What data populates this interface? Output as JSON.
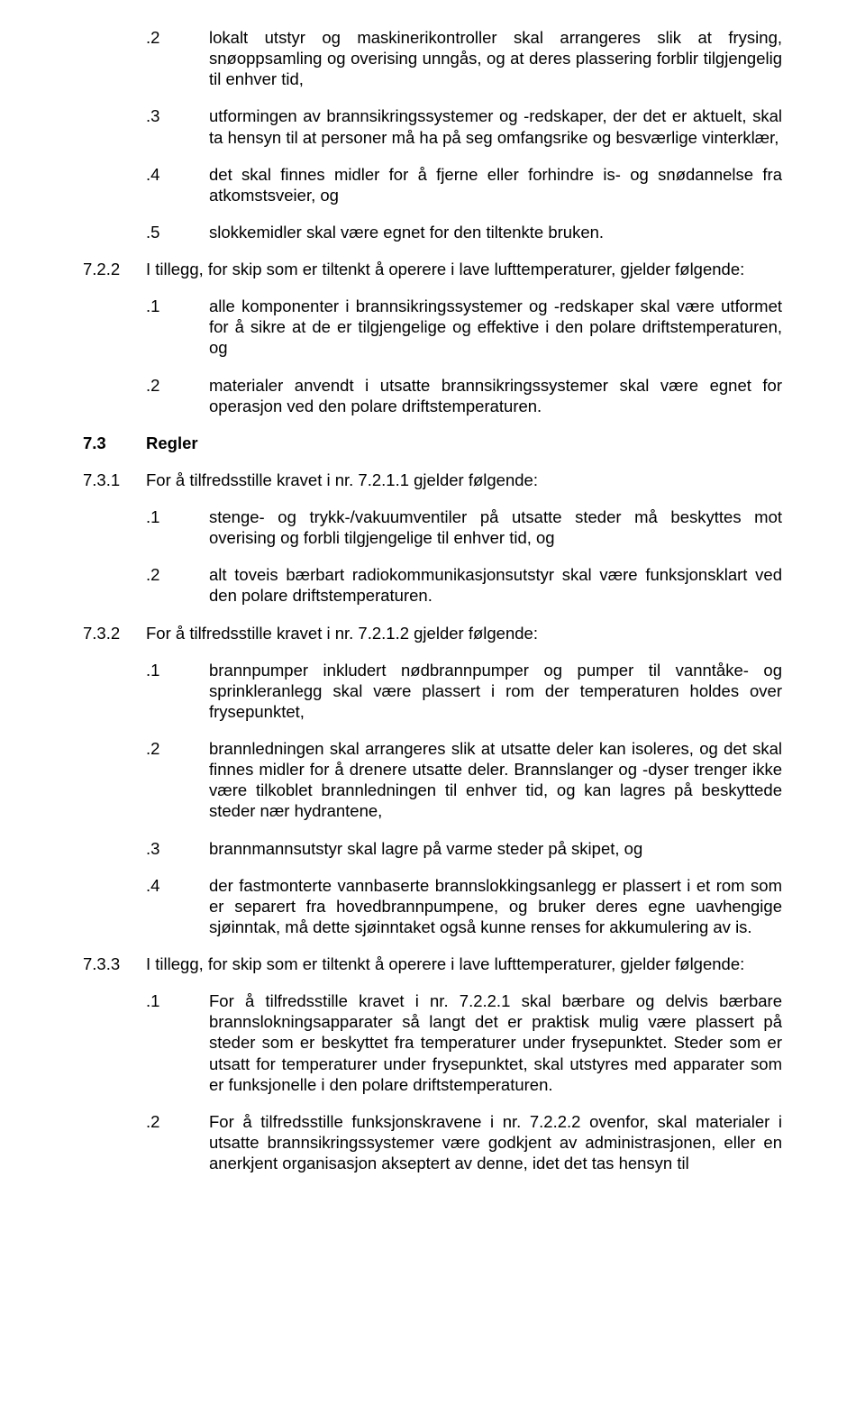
{
  "s1": {
    "items": [
      {
        "n": ".2",
        "t": "lokalt utstyr og maskinerikontroller skal arrangeres slik at frysing, snøoppsamling og overising unngås, og at deres plassering forblir tilgjengelig til enhver tid,"
      },
      {
        "n": ".3",
        "t": "utformingen av brannsikringssystemer og -redskaper, der det er aktuelt, skal ta hensyn til at personer må ha på seg omfangsrike og besværlige vinterklær,"
      },
      {
        "n": ".4",
        "t": "det skal finnes midler for å fjerne eller forhindre is- og snødannelse fra atkomstsveier, og"
      },
      {
        "n": ".5",
        "t": "slokkemidler skal være egnet for den tiltenkte bruken."
      }
    ]
  },
  "s722": {
    "n": "7.2.2",
    "t": "I tillegg, for skip som er tiltenkt å operere i lave lufttemperaturer, gjelder følgende:",
    "items": [
      {
        "n": ".1",
        "t": "alle komponenter i brannsikringssystemer og -redskaper skal være utformet for å sikre at de er tilgjengelige og effektive i den polare driftstemperaturen, og"
      },
      {
        "n": ".2",
        "t": "materialer anvendt i utsatte brannsikringssystemer skal være egnet for operasjon ved den polare driftstemperaturen."
      }
    ]
  },
  "s73": {
    "n": "7.3",
    "t": "Regler"
  },
  "s731": {
    "n": "7.3.1",
    "t": "For å tilfredsstille kravet i nr. 7.2.1.1 gjelder følgende:",
    "items": [
      {
        "n": ".1",
        "t": "stenge- og trykk-/vakuumventiler på utsatte steder må beskyttes mot overising og forbli tilgjengelige til enhver tid, og"
      },
      {
        "n": ".2",
        "t": "alt toveis bærbart radiokommunikasjonsutstyr skal være funksjonsklart ved den polare driftstemperaturen."
      }
    ]
  },
  "s732": {
    "n": "7.3.2",
    "t": "For å tilfredsstille kravet i nr. 7.2.1.2 gjelder følgende:",
    "items": [
      {
        "n": ".1",
        "t": "brannpumper inkludert nødbrannpumper og pumper til vanntåke- og sprinkleranlegg skal være plassert i rom der temperaturen holdes over frysepunktet,"
      },
      {
        "n": ".2",
        "t": "brannledningen skal arrangeres slik at utsatte deler kan isoleres, og det skal finnes midler for å drenere utsatte deler. Brannslanger og -dyser trenger ikke være tilkoblet brannledningen til enhver tid, og kan lagres på beskyttede steder nær hydrantene,"
      },
      {
        "n": ".3",
        "t": "brannmannsutstyr skal lagre på varme steder på skipet, og"
      },
      {
        "n": ".4",
        "t": "der fastmonterte vannbaserte brannslokkingsanlegg er plassert i et rom som er separert fra hovedbrannpumpene, og bruker deres egne uavhengige sjøinntak, må dette sjøinntaket også kunne renses for akkumulering av is."
      }
    ]
  },
  "s733": {
    "n": "7.3.3",
    "t": "I tillegg, for skip som er tiltenkt å operere i lave lufttemperaturer, gjelder følgende:",
    "items": [
      {
        "n": ".1",
        "t": "For å tilfredsstille kravet i nr. 7.2.2.1 skal bærbare og delvis bærbare brannslokningsapparater så langt det er praktisk mulig være plassert på steder som er beskyttet fra temperaturer under frysepunktet. Steder som er utsatt for temperaturer under frysepunktet, skal utstyres med apparater som er funksjonelle i den polare driftstemperaturen."
      },
      {
        "n": ".2",
        "t": "For å tilfredsstille funksjonskravene i nr. 7.2.2.2 ovenfor, skal materialer i utsatte brannsikringssystemer være godkjent av administrasjonen, eller en anerkjent organisasjon akseptert av denne, idet det tas hensyn til"
      }
    ]
  }
}
